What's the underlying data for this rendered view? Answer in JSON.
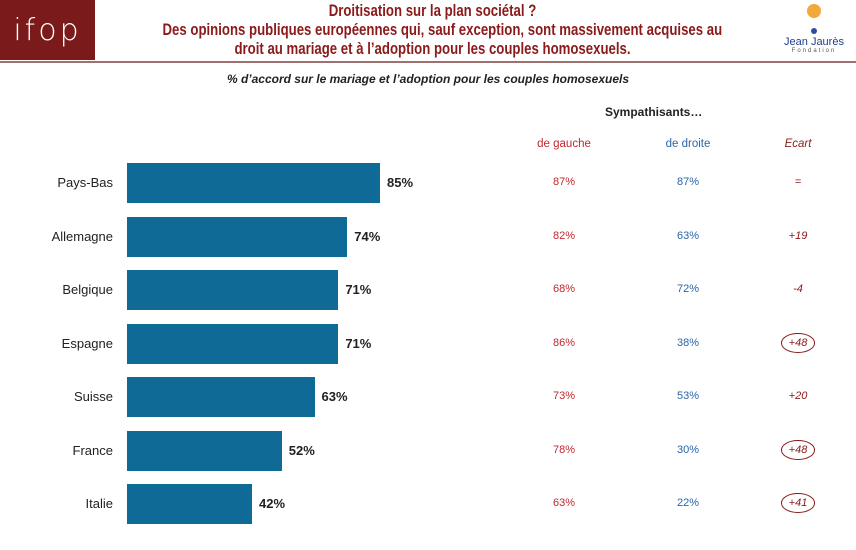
{
  "header": {
    "logo": "ifop",
    "title_line1": "Droitisation sur la plan sociétal ?",
    "title_line2": "Des opinions publiques européennes qui, sauf exception, sont massivement acquises au",
    "title_line3": "droit au mariage et à l’adoption pour les couples homosexuels.",
    "partner_logo": "Jean Jaurès",
    "partner_sub": "Fondation"
  },
  "colors": {
    "bar": "#0f6a96",
    "gauche": "#c0282d",
    "droite": "#2a65a8",
    "ecart": "#8b1a1a"
  },
  "chart_data": {
    "type": "bar",
    "orientation": "horizontal",
    "title": "% d’accord sur le mariage et l’adoption pour les couples homosexuels",
    "categories": [
      "Pays-Bas",
      "Allemagne",
      "Belgique",
      "Espagne",
      "Suisse",
      "France",
      "Italie"
    ],
    "values": [
      85,
      74,
      71,
      71,
      63,
      52,
      42
    ],
    "value_labels": [
      "85%",
      "74%",
      "71%",
      "71%",
      "63%",
      "52%",
      "42%"
    ],
    "xlim": [
      0,
      100
    ],
    "table": {
      "group_header": "Sympathisants…",
      "headers": [
        "de gauche",
        "de droite",
        "Ecart"
      ],
      "gauche": [
        "87%",
        "82%",
        "68%",
        "86%",
        "73%",
        "78%",
        "63%"
      ],
      "droite": [
        "87%",
        "63%",
        "72%",
        "38%",
        "53%",
        "30%",
        "22%"
      ],
      "ecart": [
        "=",
        "+19",
        "-4",
        "+48",
        "+20",
        "+48",
        "+41"
      ],
      "ecart_circled": [
        false,
        false,
        false,
        true,
        false,
        true,
        true
      ]
    }
  }
}
